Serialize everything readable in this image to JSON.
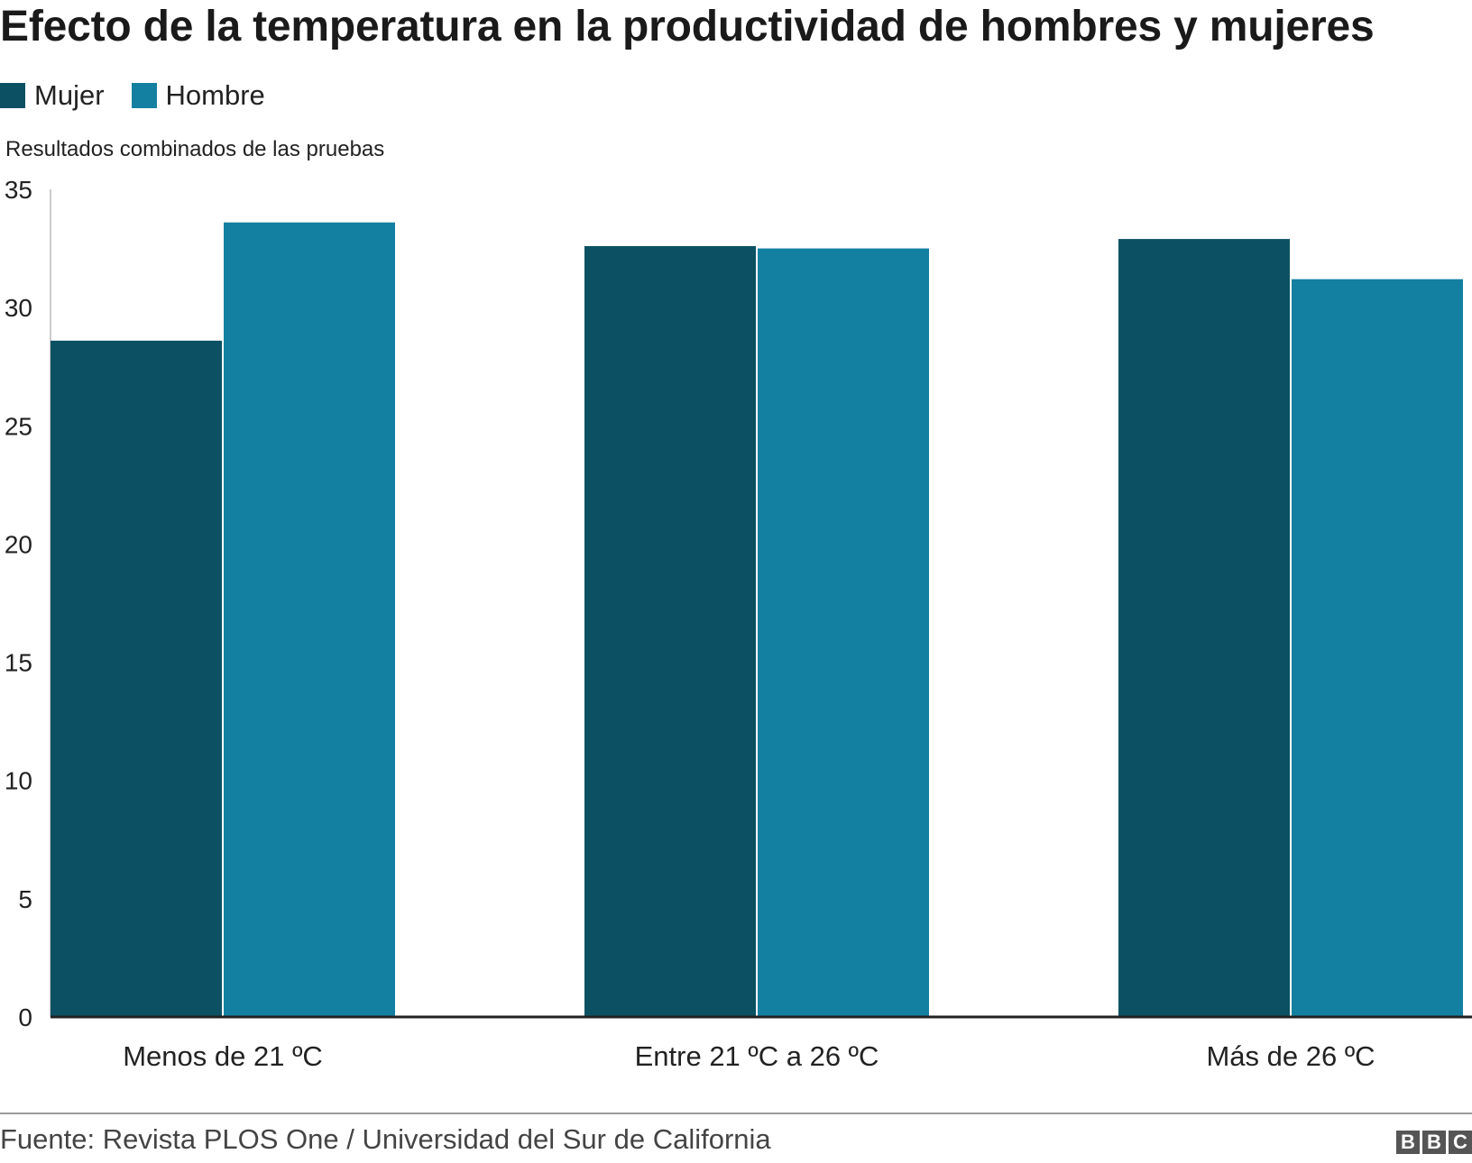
{
  "chart_data": {
    "type": "bar",
    "title": "Efecto de la temperatura en la productividad de hombres y mujeres",
    "ylabel": "Resultados combinados de las pruebas",
    "xlabel": "",
    "categories": [
      "Menos de 21 ºC",
      "Entre 21 ºC a 26 ºC",
      "Más de 26 ºC"
    ],
    "series": [
      {
        "name": "Mujer",
        "color": "#0b5163",
        "values": [
          28.6,
          32.6,
          32.9
        ]
      },
      {
        "name": "Hombre",
        "color": "#1380a1",
        "values": [
          33.6,
          32.5,
          31.2
        ]
      }
    ],
    "ylim": [
      0,
      35
    ],
    "yticks": [
      "0",
      "5",
      "10",
      "15",
      "20",
      "25",
      "30",
      "35"
    ],
    "grid": false,
    "legend": "top-left"
  },
  "footer": {
    "source": "Fuente: Revista PLOS One / Universidad del Sur de California",
    "logo_letters": [
      "B",
      "B",
      "C"
    ]
  }
}
